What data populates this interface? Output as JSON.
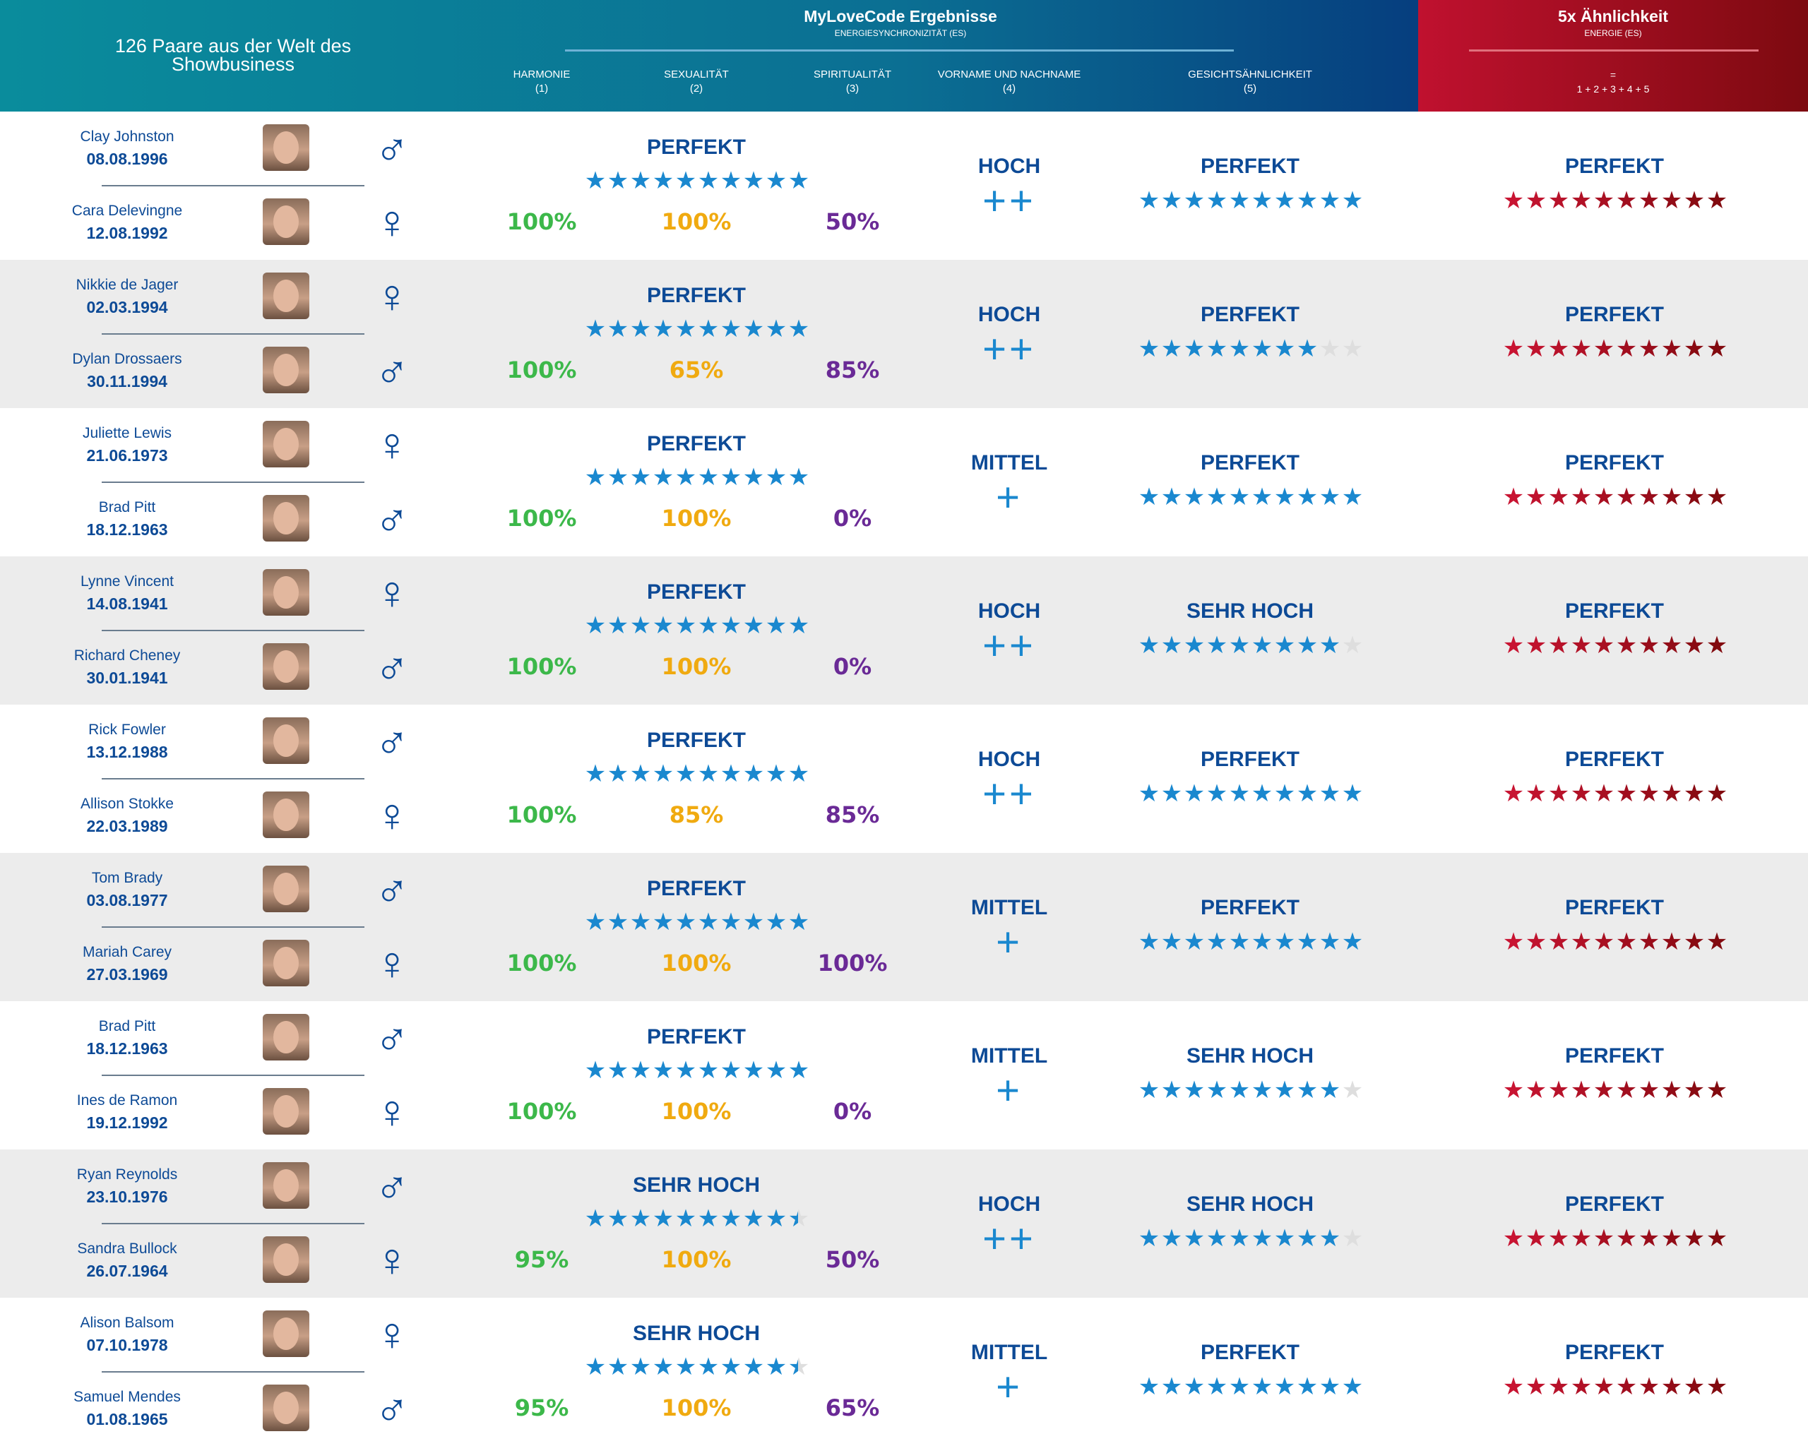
{
  "header": {
    "left_title": "126 Paare aus der Welt des Showbusiness",
    "title": "MyLoveCode Ergebnisse",
    "subtitle": "ENERGIESYNCHRONIZITÄT (ES)",
    "columns": [
      {
        "label": "HARMONIE",
        "num": "(1)"
      },
      {
        "label": "SEXUALITÄT",
        "num": "(2)"
      },
      {
        "label": "SPIRITUALITÄT",
        "num": "(3)"
      },
      {
        "label": "VORNAME UND NACHNAME",
        "num": "(4)"
      },
      {
        "label": "GESICHTSÄHNLICHKEIT",
        "num": "(5)"
      }
    ],
    "right_title": "5x Ähnlichkeit",
    "right_subtitle": "ENERGIE (ES)",
    "right_eq": "=",
    "right_formula": "1 + 2 + 3 + 4 + 5"
  },
  "colors": {
    "harmony": "#3cb84a",
    "sexuality": "#f0aa10",
    "spirituality": "#6a2a96",
    "blue_star": "#1a88cf",
    "red_star": "#b5132f",
    "empty_star": "#dedede",
    "text": "#0d4a96"
  },
  "pairs": [
    {
      "p1": {
        "name": "Clay Johnston",
        "date": "08.08.1996",
        "gender": "male"
      },
      "p2": {
        "name": "Cara Delevingne",
        "date": "12.08.1992",
        "gender": "female"
      },
      "es_label": "PERFEKT",
      "es_stars": 10,
      "harmony": "100%",
      "sexuality": "100%",
      "spirituality": "50%",
      "name_label": "HOCH",
      "name_plus": "++",
      "face_label": "PERFEKT",
      "face_stars": 10,
      "total_label": "PERFEKT",
      "total_stars": 10
    },
    {
      "p1": {
        "name": "Nikkie de Jager",
        "date": "02.03.1994",
        "gender": "female"
      },
      "p2": {
        "name": "Dylan Drossaers",
        "date": "30.11.1994",
        "gender": "male"
      },
      "es_label": "PERFEKT",
      "es_stars": 10,
      "harmony": "100%",
      "sexuality": "65%",
      "spirituality": "85%",
      "name_label": "HOCH",
      "name_plus": "++",
      "face_label": "PERFEKT",
      "face_stars": 8,
      "total_label": "PERFEKT",
      "total_stars": 10
    },
    {
      "p1": {
        "name": "Juliette Lewis",
        "date": "21.06.1973",
        "gender": "female"
      },
      "p2": {
        "name": "Brad Pitt",
        "date": "18.12.1963",
        "gender": "male"
      },
      "es_label": "PERFEKT",
      "es_stars": 10,
      "harmony": "100%",
      "sexuality": "100%",
      "spirituality": "0%",
      "name_label": "MITTEL",
      "name_plus": "+",
      "face_label": "PERFEKT",
      "face_stars": 10,
      "total_label": "PERFEKT",
      "total_stars": 10
    },
    {
      "p1": {
        "name": "Lynne Vincent",
        "date": "14.08.1941",
        "gender": "female"
      },
      "p2": {
        "name": "Richard Cheney",
        "date": "30.01.1941",
        "gender": "male"
      },
      "es_label": "PERFEKT",
      "es_stars": 10,
      "harmony": "100%",
      "sexuality": "100%",
      "spirituality": "0%",
      "name_label": "HOCH",
      "name_plus": "++",
      "face_label": "SEHR HOCH",
      "face_stars": 9,
      "total_label": "PERFEKT",
      "total_stars": 10
    },
    {
      "p1": {
        "name": "Rick Fowler",
        "date": "13.12.1988",
        "gender": "male"
      },
      "p2": {
        "name": "Allison Stokke",
        "date": "22.03.1989",
        "gender": "female"
      },
      "es_label": "PERFEKT",
      "es_stars": 10,
      "harmony": "100%",
      "sexuality": "85%",
      "spirituality": "85%",
      "name_label": "HOCH",
      "name_plus": "++",
      "face_label": "PERFEKT",
      "face_stars": 10,
      "total_label": "PERFEKT",
      "total_stars": 10
    },
    {
      "p1": {
        "name": "Tom Brady",
        "date": "03.08.1977",
        "gender": "male"
      },
      "p2": {
        "name": "Mariah Carey",
        "date": "27.03.1969",
        "gender": "female"
      },
      "es_label": "PERFEKT",
      "es_stars": 10,
      "harmony": "100%",
      "sexuality": "100%",
      "spirituality": "100%",
      "name_label": "MITTEL",
      "name_plus": "+",
      "face_label": "PERFEKT",
      "face_stars": 10,
      "total_label": "PERFEKT",
      "total_stars": 10
    },
    {
      "p1": {
        "name": "Brad Pitt",
        "date": "18.12.1963",
        "gender": "male"
      },
      "p2": {
        "name": "Ines de Ramon",
        "date": "19.12.1992",
        "gender": "female"
      },
      "es_label": "PERFEKT",
      "es_stars": 10,
      "harmony": "100%",
      "sexuality": "100%",
      "spirituality": "0%",
      "name_label": "MITTEL",
      "name_plus": "+",
      "face_label": "SEHR HOCH",
      "face_stars": 9,
      "total_label": "PERFEKT",
      "total_stars": 10
    },
    {
      "p1": {
        "name": "Ryan Reynolds",
        "date": "23.10.1976",
        "gender": "male"
      },
      "p2": {
        "name": "Sandra Bullock",
        "date": "26.07.1964",
        "gender": "female"
      },
      "es_label": "SEHR HOCH",
      "es_stars": 9.5,
      "harmony": "95%",
      "sexuality": "100%",
      "spirituality": "50%",
      "name_label": "HOCH",
      "name_plus": "++",
      "face_label": "SEHR HOCH",
      "face_stars": 9,
      "total_label": "PERFEKT",
      "total_stars": 10
    },
    {
      "p1": {
        "name": "Alison Balsom",
        "date": "07.10.1978",
        "gender": "female"
      },
      "p2": {
        "name": "Samuel Mendes",
        "date": "01.08.1965",
        "gender": "male"
      },
      "es_label": "SEHR HOCH",
      "es_stars": 9.5,
      "harmony": "95%",
      "sexuality": "100%",
      "spirituality": "65%",
      "name_label": "MITTEL",
      "name_plus": "+",
      "face_label": "PERFEKT",
      "face_stars": 10,
      "total_label": "PERFEKT",
      "total_stars": 10
    }
  ]
}
